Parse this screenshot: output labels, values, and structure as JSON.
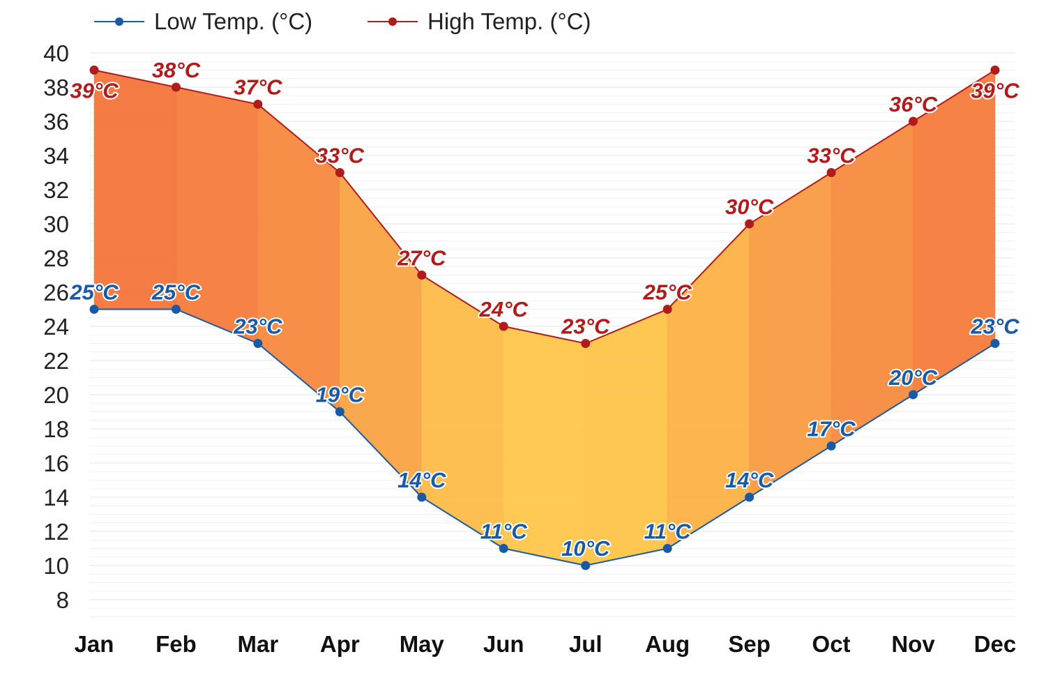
{
  "chart_data": {
    "type": "line",
    "categories": [
      "Jan",
      "Feb",
      "Mar",
      "Apr",
      "May",
      "Jun",
      "Jul",
      "Aug",
      "Sep",
      "Oct",
      "Nov",
      "Dec"
    ],
    "series": [
      {
        "name": "Low Temp. (°C)",
        "values": [
          25,
          25,
          23,
          19,
          14,
          11,
          10,
          11,
          14,
          17,
          20,
          23
        ],
        "labels": [
          "25°C",
          "25°C",
          "23°C",
          "19°C",
          "14°C",
          "11°C",
          "10°C",
          "11°C",
          "14°C",
          "17°C",
          "20°C",
          "23°C"
        ],
        "color": "#1a5aa5"
      },
      {
        "name": "High Temp. (°C)",
        "values": [
          39,
          38,
          37,
          33,
          27,
          24,
          23,
          25,
          30,
          33,
          36,
          39
        ],
        "labels": [
          "39°C",
          "38°C",
          "37°C",
          "33°C",
          "27°C",
          "24°C",
          "23°C",
          "25°C",
          "30°C",
          "33°C",
          "36°C",
          "39°C"
        ],
        "color": "#b01c1c"
      }
    ],
    "fill_between": true,
    "fill_color_hot": "#f4733a",
    "fill_color_mild": "#ffc94a",
    "ylim": [
      7,
      40
    ],
    "yticks": [
      "8",
      "10",
      "12",
      "14",
      "16",
      "18",
      "20",
      "22",
      "24",
      "26",
      "28",
      "30",
      "32",
      "34",
      "36",
      "38",
      "40"
    ],
    "grid": true,
    "legend": "top-left",
    "xlabel": "",
    "ylabel": ""
  }
}
